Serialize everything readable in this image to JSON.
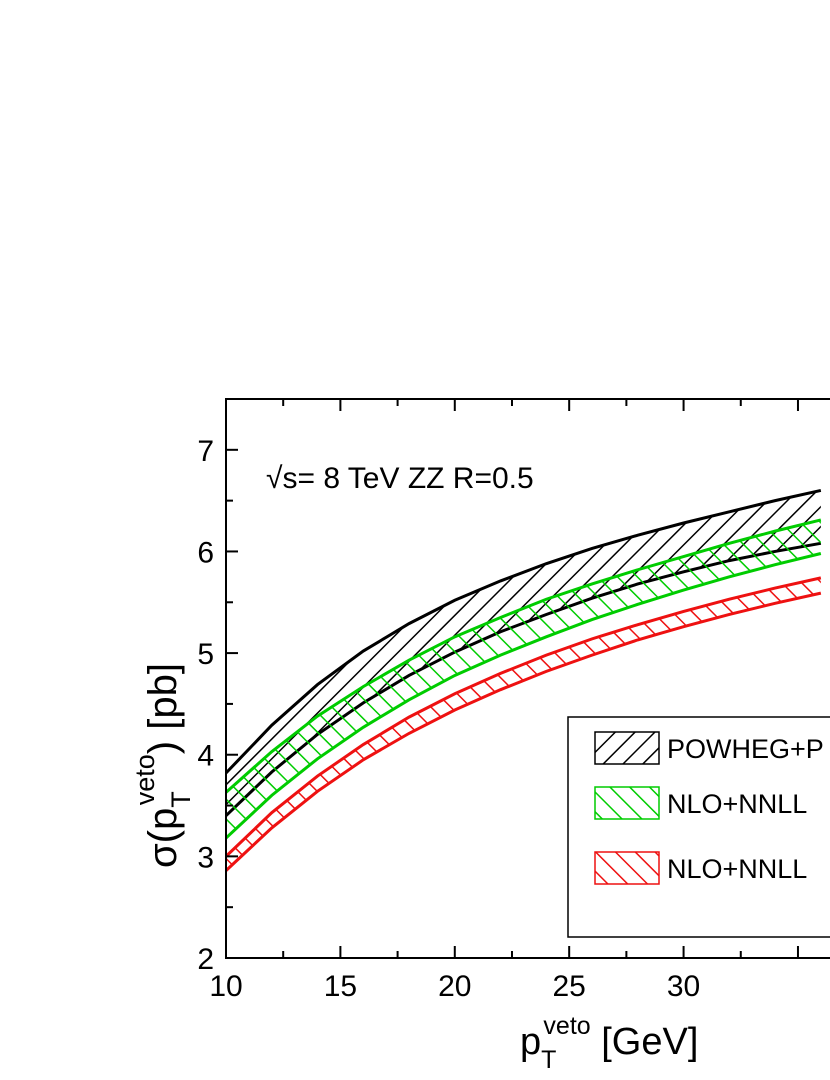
{
  "chart_data": {
    "type": "area",
    "annotation": "√s= 8 TeV ZZ R=0.5",
    "xlabel_main": "p",
    "xlabel_sub": "T",
    "xlabel_sup": "veto",
    "xlabel_unit": " [GeV]",
    "ylabel_main": "σ(p",
    "ylabel_sub": "T",
    "ylabel_sup": "veto",
    "ylabel_tail": ") [pb]",
    "xlim": [
      10,
      36.4
    ],
    "ylim": [
      2,
      7.5
    ],
    "xticks": [
      10,
      15,
      20,
      25,
      30
    ],
    "xtick_labels": [
      "10",
      "15",
      "20",
      "25",
      "30"
    ],
    "yticks": [
      2,
      3,
      4,
      5,
      6,
      7
    ],
    "ytick_labels": [
      "2",
      "3",
      "4",
      "5",
      "6",
      "7"
    ],
    "x": [
      10,
      12,
      14,
      16,
      18,
      20,
      22,
      24,
      26,
      28,
      30,
      32,
      34,
      36
    ],
    "series": [
      {
        "name": "POWHEG+P",
        "color": "#000000",
        "hatch": "forward",
        "upper": [
          3.82,
          4.29,
          4.69,
          5.02,
          5.29,
          5.52,
          5.71,
          5.88,
          6.03,
          6.16,
          6.28,
          6.39,
          6.5,
          6.6
        ],
        "lower": [
          3.4,
          3.83,
          4.2,
          4.51,
          4.78,
          5.01,
          5.21,
          5.38,
          5.54,
          5.68,
          5.8,
          5.91,
          6.0,
          6.08
        ]
      },
      {
        "name": "NLO+NNLL",
        "color": "#00cc00",
        "hatch": "back",
        "upper": [
          3.63,
          4.03,
          4.38,
          4.67,
          4.93,
          5.16,
          5.35,
          5.53,
          5.68,
          5.82,
          5.95,
          6.08,
          6.2,
          6.31
        ],
        "lower": [
          3.18,
          3.6,
          3.96,
          4.27,
          4.54,
          4.78,
          4.98,
          5.16,
          5.33,
          5.48,
          5.62,
          5.75,
          5.87,
          5.98
        ]
      },
      {
        "name": "NLO+NNLL",
        "color": "#ee1111",
        "hatch": "back",
        "upper": [
          3.0,
          3.43,
          3.79,
          4.1,
          4.37,
          4.6,
          4.8,
          4.98,
          5.14,
          5.28,
          5.41,
          5.53,
          5.64,
          5.74
        ],
        "lower": [
          2.86,
          3.28,
          3.64,
          3.95,
          4.21,
          4.44,
          4.64,
          4.82,
          4.98,
          5.13,
          5.26,
          5.38,
          5.49,
          5.59
        ]
      }
    ],
    "legend_placement": "bottom-right"
  }
}
